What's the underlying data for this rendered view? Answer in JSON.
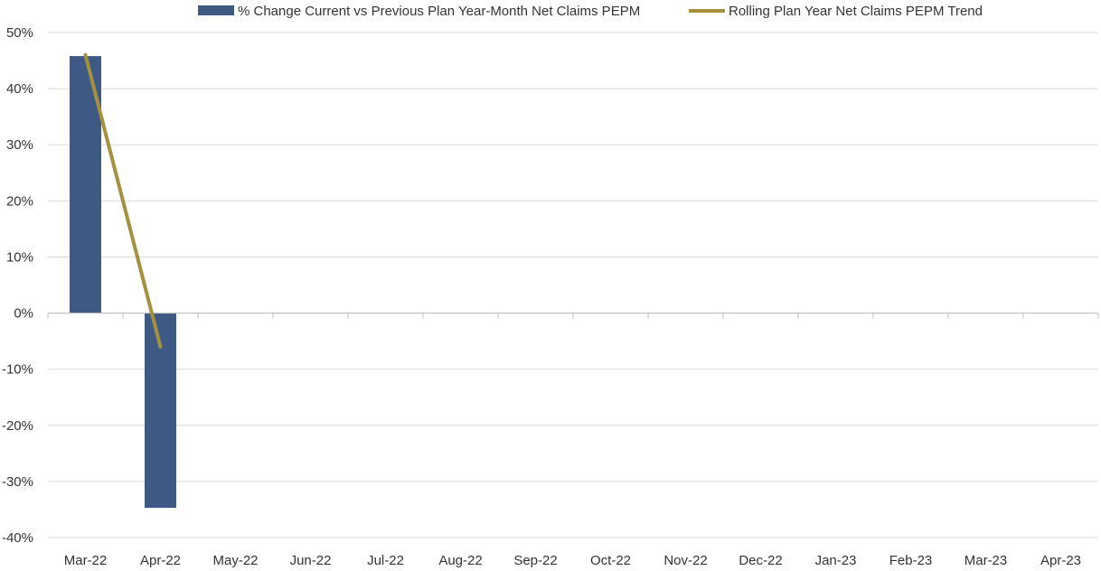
{
  "chart_data": {
    "type": "bar",
    "categories": [
      "Mar-22",
      "Apr-22",
      "May-22",
      "Jun-22",
      "Jul-22",
      "Aug-22",
      "Sep-22",
      "Oct-22",
      "Nov-22",
      "Dec-22",
      "Jan-23",
      "Feb-23",
      "Mar-23",
      "Apr-23"
    ],
    "series": [
      {
        "name": "% Change Current vs Previous Plan Year-Month Net Claims PEPM",
        "kind": "bar",
        "color": "#3e5a84",
        "values": [
          45.8,
          -34.7,
          null,
          null,
          null,
          null,
          null,
          null,
          null,
          null,
          null,
          null,
          null,
          null
        ]
      },
      {
        "name": "Rolling Plan Year Net Claims PEPM Trend",
        "kind": "line",
        "color": "#a39140",
        "values": [
          46.0,
          -6.0,
          null,
          null,
          null,
          null,
          null,
          null,
          null,
          null,
          null,
          null,
          null,
          null
        ]
      }
    ],
    "y_ticks": [
      50,
      40,
      30,
      20,
      10,
      0,
      -10,
      -20,
      -30,
      -40
    ],
    "y_tick_labels": [
      "50%",
      "40%",
      "30%",
      "20%",
      "10%",
      "0%",
      "-10%",
      "-20%",
      "-30%",
      "-40%"
    ],
    "ylim": [
      -40,
      50
    ],
    "grid": "horizontal",
    "legend_position": "top-center",
    "gridline_color": "#d9d9d9",
    "axis_color": "#bfbfbf"
  }
}
